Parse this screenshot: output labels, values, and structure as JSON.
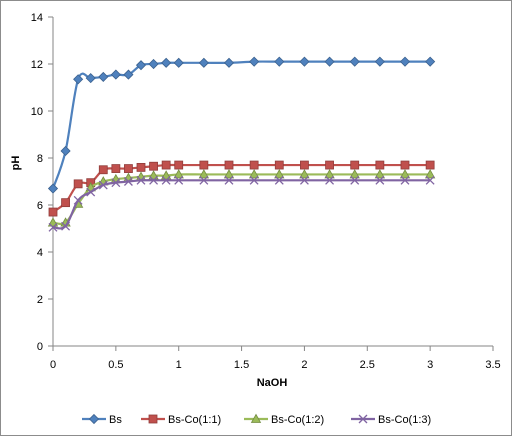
{
  "chart_data": {
    "type": "line",
    "xlabel": "NaOH",
    "ylabel": "pH",
    "xlim": [
      0,
      3.5
    ],
    "ylim": [
      0,
      14
    ],
    "xticks": [
      "0",
      "0.5",
      "1",
      "1.5",
      "2",
      "2.5",
      "3",
      "3.5"
    ],
    "yticks": [
      "0",
      "2",
      "4",
      "6",
      "8",
      "10",
      "12",
      "14"
    ],
    "grid": false,
    "legend_position": "bottom",
    "x": [
      0,
      0.1,
      0.2,
      0.3,
      0.4,
      0.5,
      0.6,
      0.7,
      0.8,
      0.9,
      1.0,
      1.2,
      1.4,
      1.6,
      1.8,
      2.0,
      2.2,
      2.4,
      2.6,
      2.8,
      3.0
    ],
    "series": [
      {
        "name": "Bs",
        "color": "#4f81bd",
        "marker": "diamond",
        "values": [
          6.7,
          8.3,
          11.35,
          11.4,
          11.45,
          11.55,
          11.55,
          11.95,
          12.0,
          12.05,
          12.05,
          12.05,
          12.05,
          12.1,
          12.1,
          12.1,
          12.1,
          12.1,
          12.1,
          12.1,
          12.1
        ]
      },
      {
        "name": "Bs-Co(1:1)",
        "color": "#c0504d",
        "marker": "square",
        "values": [
          5.7,
          6.1,
          6.9,
          6.95,
          7.5,
          7.55,
          7.55,
          7.6,
          7.65,
          7.7,
          7.7,
          7.7,
          7.7,
          7.7,
          7.7,
          7.7,
          7.7,
          7.7,
          7.7,
          7.7,
          7.7
        ]
      },
      {
        "name": "Bs-Co(1:2)",
        "color": "#9bbb59",
        "marker": "triangle",
        "values": [
          5.25,
          5.25,
          6.05,
          6.75,
          7.0,
          7.1,
          7.15,
          7.2,
          7.25,
          7.25,
          7.3,
          7.3,
          7.3,
          7.3,
          7.3,
          7.3,
          7.3,
          7.3,
          7.3,
          7.3,
          7.3
        ]
      },
      {
        "name": "Bs-Co(1:3)",
        "color": "#8064a2",
        "marker": "x",
        "values": [
          5.05,
          5.1,
          6.2,
          6.55,
          6.85,
          6.95,
          7.0,
          7.05,
          7.05,
          7.05,
          7.05,
          7.05,
          7.05,
          7.05,
          7.05,
          7.05,
          7.05,
          7.05,
          7.05,
          7.05,
          7.05
        ]
      }
    ]
  }
}
